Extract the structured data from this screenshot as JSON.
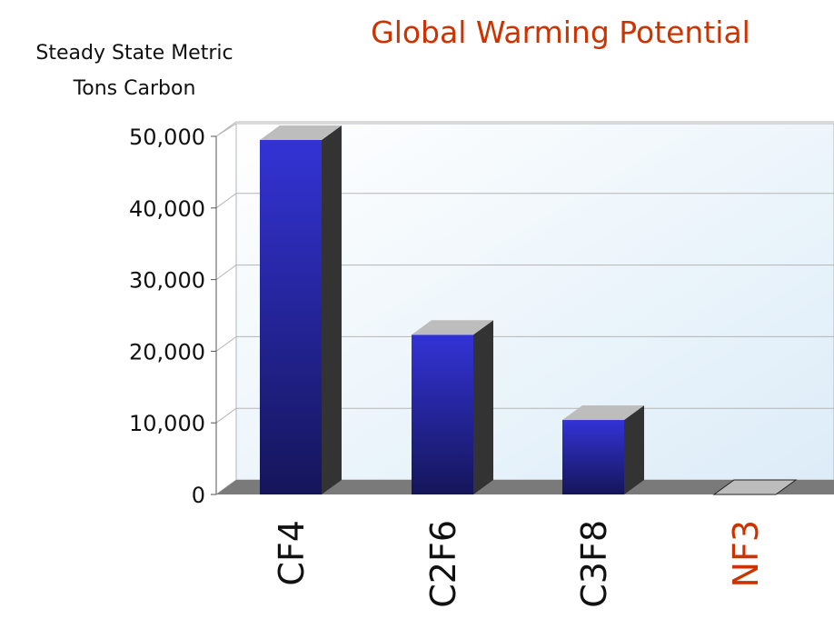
{
  "chart_data": {
    "type": "bar",
    "title": "Global Warming Potential",
    "ylabel": [
      "Steady State Metric",
      "Tons Carbon"
    ],
    "xlabel": "",
    "categories": [
      "CF4",
      "C2F6",
      "C3F8",
      "NF3"
    ],
    "values": [
      49500,
      22300,
      10400,
      0
    ],
    "ylim": [
      0,
      50000
    ],
    "yticks": [
      0,
      10000,
      20000,
      30000,
      40000,
      50000
    ],
    "ytick_labels": [
      "0",
      "10,000",
      "20,000",
      "30,000",
      "40,000",
      "50,000"
    ],
    "grid": true,
    "legend": "none",
    "three_d": true
  },
  "colors": {
    "title": "#cc3300",
    "highlight_category": "#cc3300",
    "category_text": "#111111",
    "bar_front_top": "#3333d6",
    "bar_front_bottom": "#15155a",
    "bar_side": "#333333",
    "bar_top": "#bdbdbd",
    "floor": "#7a7a7a",
    "plot_bg_top": "#ffffff",
    "plot_bg_bottom": "#dcecf8",
    "grid": "#b5b5b5",
    "axis": "#555555"
  },
  "highlight": "NF3"
}
